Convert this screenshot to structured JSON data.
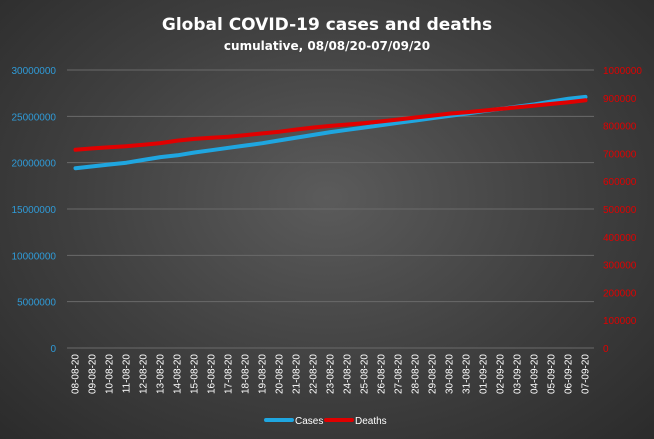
{
  "chart_data": {
    "type": "line",
    "title": "Global  COVID-19  cases  and  deaths",
    "subtitle": "cumulative,  08/08/20-07/09/20",
    "x": [
      "08-08-20",
      "09-08-20",
      "10-08-20",
      "11-08-20",
      "12-08-20",
      "13-08-20",
      "14-08-20",
      "15-08-20",
      "16-08-20",
      "17-08-20",
      "18-08-20",
      "19-08-20",
      "20-08-20",
      "21-08-20",
      "22-08-20",
      "23-08-20",
      "24-08-20",
      "25-08-20",
      "26-08-20",
      "27-08-20",
      "28-08-20",
      "29-08-20",
      "30-08-20",
      "31-08-20",
      "01-09-20",
      "02-09-20",
      "03-09-20",
      "04-09-20",
      "05-09-20",
      "06-09-20",
      "07-09-20"
    ],
    "y_left": {
      "ylim": [
        0,
        30000000
      ],
      "ticks": [
        "0",
        "5000000",
        "10000000",
        "15000000",
        "20000000",
        "25000000",
        "30000000"
      ]
    },
    "y_right": {
      "ylim": [
        0,
        1000000
      ],
      "ticks": [
        "0",
        "100000",
        "200000",
        "300000",
        "400000",
        "500000",
        "600000",
        "700000",
        "800000",
        "900000",
        "1000000"
      ]
    },
    "series": [
      {
        "name": "Cases",
        "axis": "left",
        "color": "#1fa6e0",
        "values": [
          19400000,
          19600000,
          19800000,
          20000000,
          20300000,
          20600000,
          20800000,
          21100000,
          21350000,
          21600000,
          21850000,
          22100000,
          22400000,
          22700000,
          23000000,
          23300000,
          23550000,
          23800000,
          24050000,
          24300000,
          24550000,
          24800000,
          25050000,
          25300000,
          25550000,
          25800000,
          26050000,
          26300000,
          26600000,
          26900000,
          27100000
        ]
      },
      {
        "name": "Deaths",
        "axis": "right",
        "color": "#e00000",
        "values": [
          713000,
          718000,
          722000,
          726000,
          731000,
          737000,
          746000,
          752000,
          756000,
          760000,
          766000,
          772000,
          778000,
          786000,
          793000,
          799000,
          804000,
          809000,
          815000,
          822000,
          829000,
          836000,
          843000,
          848000,
          854000,
          860000,
          866000,
          872000,
          878000,
          884000,
          891000
        ]
      }
    ],
    "grid": true,
    "legend": "bottom"
  }
}
